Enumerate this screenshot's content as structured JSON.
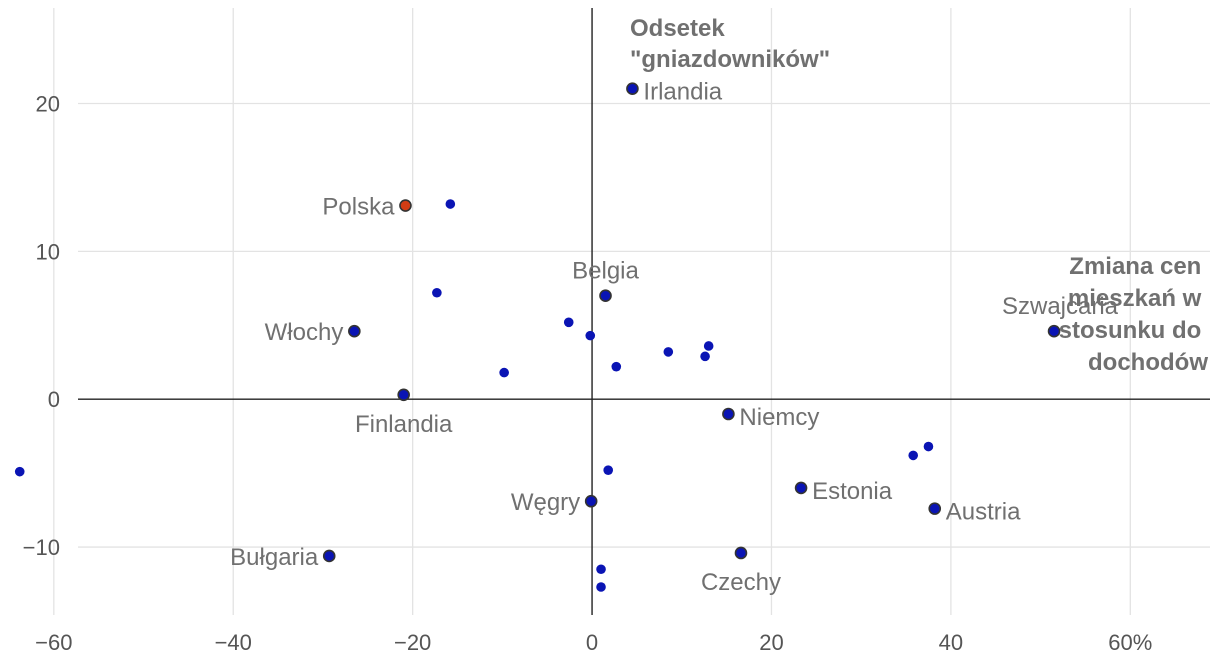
{
  "chart_data": {
    "type": "scatter",
    "x_title": [
      "Zmiana cen",
      "mieszkań w",
      "stosunku do",
      "dochodów"
    ],
    "y_title": [
      "Odsetek",
      "\"gniazdowników\""
    ],
    "xlim": [
      -66,
      70
    ],
    "ylim": [
      -15,
      27
    ],
    "x_ticks": [
      {
        "value": -60,
        "label": "−60"
      },
      {
        "value": -40,
        "label": "−40"
      },
      {
        "value": -20,
        "label": "−20"
      },
      {
        "value": 0,
        "label": "0"
      },
      {
        "value": 20,
        "label": "20"
      },
      {
        "value": 40,
        "label": "40"
      },
      {
        "value": 60,
        "label": "60%"
      }
    ],
    "y_ticks": [
      {
        "value": -10,
        "label": "−10"
      },
      {
        "value": 0,
        "label": "0"
      },
      {
        "value": 10,
        "label": "10"
      },
      {
        "value": 20,
        "label": "20"
      }
    ],
    "colors": {
      "point": "#0a14b4",
      "highlight": "#d23c14",
      "outline": "#333333"
    },
    "points": [
      {
        "x": 4.5,
        "y": 21.0,
        "label": "Irlandia",
        "anchor": "right",
        "outlined": true
      },
      {
        "x": -20.8,
        "y": 13.1,
        "label": "Polska",
        "anchor": "left",
        "highlight": true,
        "outlined": true
      },
      {
        "x": -15.8,
        "y": 13.2
      },
      {
        "x": -17.3,
        "y": 7.2
      },
      {
        "x": 1.5,
        "y": 7.0,
        "label": "Belgia",
        "anchor": "above",
        "outlined": true
      },
      {
        "x": -26.5,
        "y": 4.6,
        "label": "Włochy",
        "anchor": "left",
        "outlined": true
      },
      {
        "x": -2.6,
        "y": 5.2
      },
      {
        "x": -0.2,
        "y": 4.3
      },
      {
        "x": 51.5,
        "y": 4.6,
        "label": "Szwajcaria",
        "anchor": "above-left",
        "outlined": true
      },
      {
        "x": 13.0,
        "y": 3.6
      },
      {
        "x": 8.5,
        "y": 3.2
      },
      {
        "x": 12.6,
        "y": 2.9
      },
      {
        "x": 2.7,
        "y": 2.2
      },
      {
        "x": -9.8,
        "y": 1.8
      },
      {
        "x": -21.0,
        "y": 0.3,
        "label": "Finlandia",
        "anchor": "below",
        "outlined": true
      },
      {
        "x": 15.2,
        "y": -1.0,
        "label": "Niemcy",
        "anchor": "right",
        "outlined": true
      },
      {
        "x": 37.5,
        "y": -3.2
      },
      {
        "x": 35.8,
        "y": -3.8
      },
      {
        "x": -63.8,
        "y": -4.9
      },
      {
        "x": 1.8,
        "y": -4.8
      },
      {
        "x": 23.3,
        "y": -6.0,
        "label": "Estonia",
        "anchor": "right",
        "outlined": true
      },
      {
        "x": 38.2,
        "y": -7.4,
        "label": "Austria",
        "anchor": "right",
        "outlined": true
      },
      {
        "x": -0.1,
        "y": -6.9,
        "label": "Węgry",
        "anchor": "left",
        "outlined": true
      },
      {
        "x": -29.3,
        "y": -10.6,
        "label": "Bułgaria",
        "anchor": "left",
        "outlined": true
      },
      {
        "x": 16.6,
        "y": -10.4,
        "label": "Czechy",
        "anchor": "below",
        "outlined": true
      },
      {
        "x": 1.0,
        "y": -11.5
      },
      {
        "x": 1.0,
        "y": -12.7
      }
    ]
  }
}
